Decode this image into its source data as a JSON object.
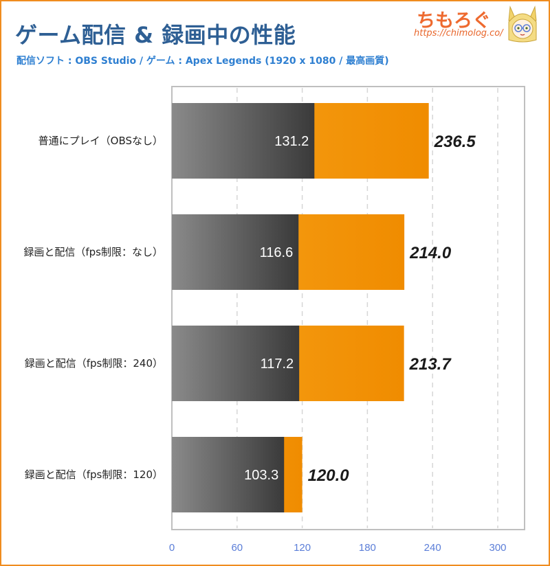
{
  "header": {
    "title": "ゲーム配信 & 録画中の性能",
    "subtitle": "配信ソフト : OBS Studio / ゲーム : Apex Legends (1920 x 1080 / 最高画質)"
  },
  "logo": {
    "name": "ちもろぐ",
    "url": "https://chimolog.co/",
    "mascot_icon": "mascot-character-icon"
  },
  "colors": {
    "accent_orange": "#f39200",
    "frame_orange": "#f08c1e",
    "title_blue": "#2e5f94",
    "subtitle_blue": "#2e7fd1",
    "tick_blue": "#5b7ed8",
    "bar_dark": "#3a3a3a",
    "bar_light": "#8a8a8a"
  },
  "chart_data": {
    "type": "bar",
    "orientation": "horizontal",
    "stacked": "overlay",
    "categories": [
      "普通にプレイ（OBSなし）",
      "録画と配信（fps制限：なし）",
      "録画と配信（fps制限：240）",
      "録画と配信（fps制限：120）"
    ],
    "series": [
      {
        "values": [
          131.2,
          116.6,
          117.2,
          103.3
        ],
        "color": "#3a3a3a",
        "label_position": "inside"
      },
      {
        "values": [
          236.5,
          214.0,
          213.7,
          120.0
        ],
        "color": "#f39200",
        "label_position": "outside"
      }
    ],
    "value_labels": {
      "inner": [
        "131.2",
        "116.6",
        "117.2",
        "103.3"
      ],
      "outer": [
        "236.5",
        "214.0",
        "213.7",
        "120.0"
      ]
    },
    "xlim": [
      0,
      300
    ],
    "xticks": [
      0,
      60,
      120,
      180,
      240,
      300
    ],
    "xtick_labels": [
      "0",
      "60",
      "120",
      "180",
      "240",
      "300"
    ],
    "grid": "vertical dashed",
    "legend": "none"
  }
}
